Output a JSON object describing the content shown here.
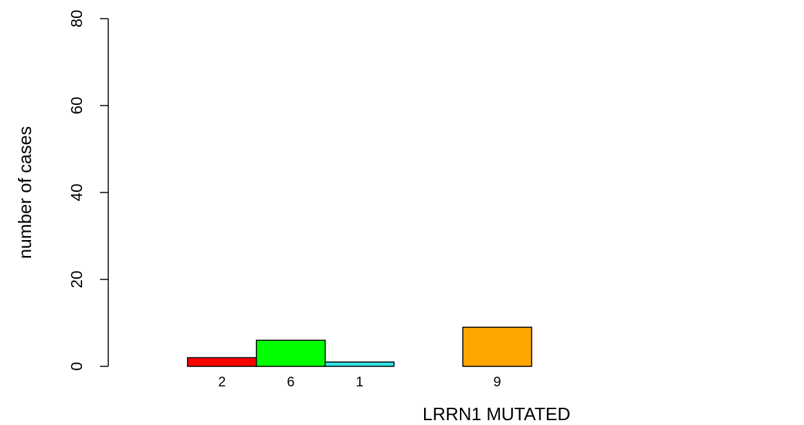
{
  "chart_data": {
    "type": "bar",
    "title": "",
    "xlabel": "LRRN1 MUTATED",
    "ylabel": "number of cases",
    "ylim": [
      0,
      80
    ],
    "yticks": [
      0,
      20,
      40,
      60,
      80
    ],
    "grid": false,
    "legend": "none",
    "categories": [
      "",
      "",
      "",
      "",
      "",
      "",
      "",
      "",
      ""
    ],
    "values": [
      2,
      6,
      1,
      0,
      9,
      0,
      0,
      0,
      0
    ],
    "value_labels": [
      "2",
      "6",
      "1",
      "",
      "9",
      "",
      "",
      "",
      ""
    ],
    "colors": [
      "#ff0000",
      "#00ff00",
      "#33e6e6",
      "#ffffff",
      "#ffa500",
      "#ffffff",
      "#ffffff",
      "#ffffff",
      "#ffffff"
    ]
  }
}
